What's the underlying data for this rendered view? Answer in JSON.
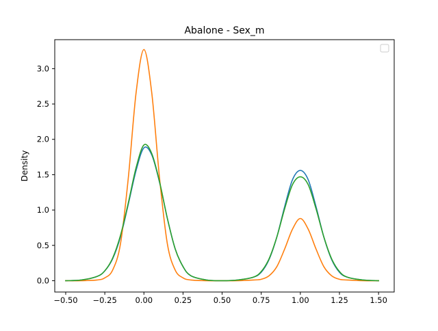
{
  "chart_data": {
    "type": "line",
    "title": "Abalone - Sex_m",
    "xlabel": "",
    "ylabel": "Density",
    "xlim": [
      -0.57,
      1.6
    ],
    "ylim": [
      -0.16,
      3.41
    ],
    "xticks": [
      -0.5,
      -0.25,
      0.0,
      0.25,
      0.5,
      0.75,
      1.0,
      1.25,
      1.5
    ],
    "xtick_labels": [
      "−0.50",
      "−0.25",
      "0.00",
      "0.25",
      "0.50",
      "0.75",
      "1.00",
      "1.25",
      "1.50"
    ],
    "yticks": [
      0.0,
      0.5,
      1.0,
      1.5,
      2.0,
      2.5,
      3.0
    ],
    "ytick_labels": [
      "0.0",
      "0.5",
      "1.0",
      "1.5",
      "2.0",
      "2.5",
      "3.0"
    ],
    "grid": false,
    "legend": {
      "placement": "upper-right",
      "entries": []
    },
    "series": [
      {
        "color": "#1f77b4",
        "x": [
          -0.5,
          -0.4,
          -0.3,
          -0.25,
          -0.2,
          -0.15,
          -0.1,
          -0.05,
          0.0,
          0.05,
          0.1,
          0.15,
          0.2,
          0.25,
          0.3,
          0.4,
          0.5,
          0.6,
          0.7,
          0.75,
          0.8,
          0.85,
          0.9,
          0.95,
          1.0,
          1.05,
          1.1,
          1.15,
          1.2,
          1.25,
          1.3,
          1.4,
          1.5
        ],
        "y": [
          0.0,
          0.01,
          0.06,
          0.14,
          0.31,
          0.62,
          1.08,
          1.56,
          1.88,
          1.78,
          1.39,
          0.88,
          0.45,
          0.2,
          0.07,
          0.01,
          0.0,
          0.01,
          0.05,
          0.12,
          0.3,
          0.62,
          1.05,
          1.43,
          1.56,
          1.43,
          1.05,
          0.62,
          0.3,
          0.12,
          0.05,
          0.01,
          0.0
        ]
      },
      {
        "color": "#ff7f0e",
        "x": [
          -0.5,
          -0.4,
          -0.3,
          -0.25,
          -0.2,
          -0.15,
          -0.1,
          -0.05,
          0.0,
          0.05,
          0.1,
          0.15,
          0.2,
          0.25,
          0.3,
          0.4,
          0.5,
          0.6,
          0.7,
          0.75,
          0.8,
          0.85,
          0.9,
          0.95,
          1.0,
          1.05,
          1.1,
          1.15,
          1.2,
          1.25,
          1.3,
          1.4,
          1.5
        ],
        "y": [
          0.0,
          0.0,
          0.01,
          0.04,
          0.15,
          0.52,
          1.45,
          2.66,
          3.27,
          2.66,
          1.45,
          0.52,
          0.15,
          0.04,
          0.01,
          0.0,
          0.0,
          0.0,
          0.01,
          0.02,
          0.07,
          0.2,
          0.45,
          0.73,
          0.88,
          0.73,
          0.45,
          0.2,
          0.07,
          0.02,
          0.01,
          0.0,
          0.0
        ]
      },
      {
        "color": "#2ca02c",
        "x": [
          -0.5,
          -0.4,
          -0.3,
          -0.25,
          -0.2,
          -0.15,
          -0.1,
          -0.05,
          0.0,
          0.05,
          0.1,
          0.15,
          0.2,
          0.25,
          0.3,
          0.4,
          0.5,
          0.6,
          0.7,
          0.75,
          0.8,
          0.85,
          0.9,
          0.95,
          1.0,
          1.05,
          1.1,
          1.15,
          1.2,
          1.25,
          1.3,
          1.4,
          1.5
        ],
        "y": [
          0.0,
          0.01,
          0.06,
          0.14,
          0.32,
          0.64,
          1.1,
          1.6,
          1.92,
          1.8,
          1.4,
          0.88,
          0.45,
          0.2,
          0.07,
          0.01,
          0.0,
          0.01,
          0.05,
          0.13,
          0.31,
          0.62,
          1.02,
          1.36,
          1.47,
          1.36,
          1.02,
          0.62,
          0.31,
          0.13,
          0.05,
          0.01,
          0.0
        ]
      }
    ]
  }
}
